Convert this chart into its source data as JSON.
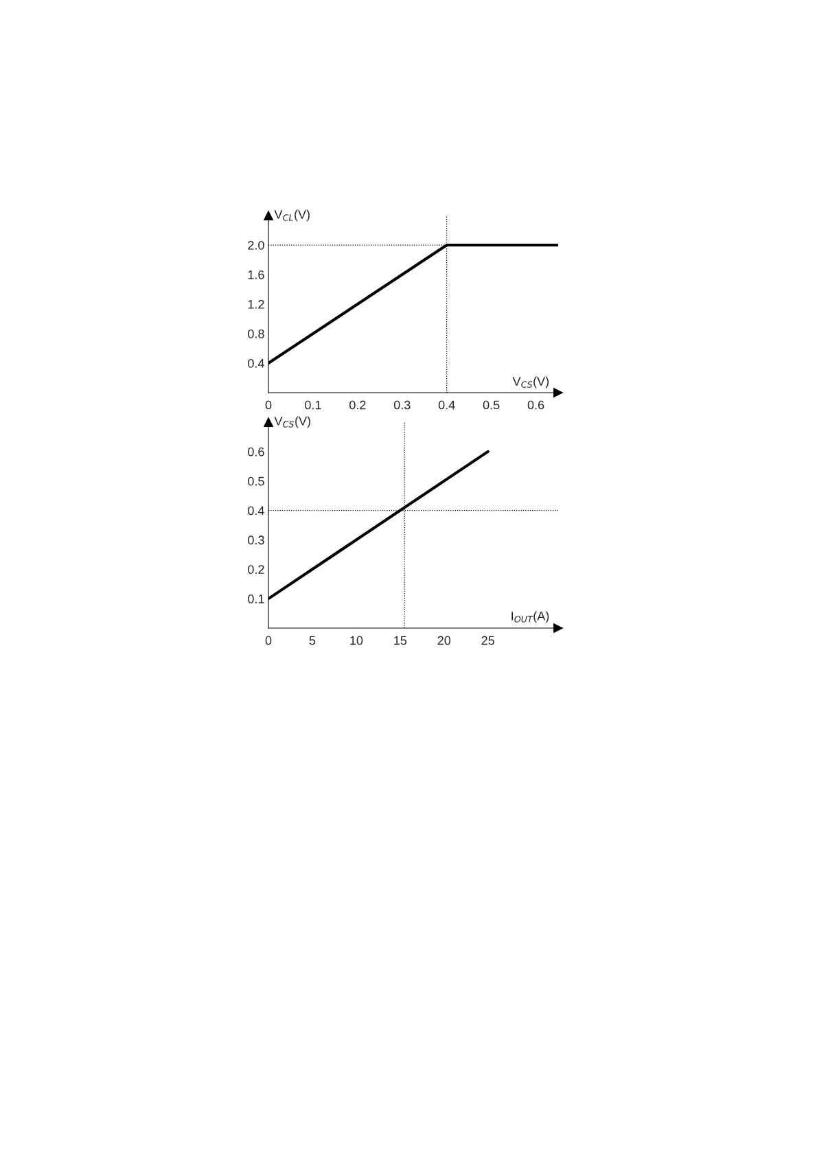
{
  "chart_data": [
    {
      "type": "line",
      "xlabel": "V$_{CS}$(V)",
      "ylabel": "V$_{CL}$(V)",
      "series": [
        {
          "color": "#000000",
          "x": [
            0,
            0.4,
            0.65
          ],
          "values": [
            0.4,
            2.0,
            2.0
          ]
        }
      ],
      "xlim": [
        0,
        0.65
      ],
      "ylim": [
        0,
        2.4
      ],
      "xticks": [
        0,
        0.1,
        0.2,
        0.3,
        0.4,
        0.5,
        0.6
      ],
      "yticks": [
        0.4,
        0.8,
        1.2,
        1.6,
        {
          "value": 2,
          "label": "2.0"
        }
      ],
      "ref_lines": [
        {
          "axis": "y",
          "value": 2.0,
          "line_style": "dotted",
          "color": "#000000"
        },
        {
          "axis": "x",
          "value": 0.4,
          "line_style": "dotted",
          "color": "#000000"
        }
      ]
    },
    {
      "type": "line",
      "xlabel": "I$_{OUT}$(A)",
      "ylabel": "V$_{CS}$(V)",
      "series": [
        {
          "color": "#000000",
          "x": [
            0,
            25
          ],
          "values": [
            0.1,
            0.6
          ]
        }
      ],
      "xlim": [
        0,
        33
      ],
      "ylim": [
        0,
        0.7
      ],
      "xticks": [
        0,
        5,
        10,
        15,
        20,
        25
      ],
      "yticks": [
        0.1,
        0.2,
        0.3,
        0.4,
        0.5,
        0.6
      ],
      "ref_lines": [
        {
          "axis": "y",
          "value": 0.4,
          "line_style": "dotted",
          "color": "#000000"
        },
        {
          "axis": "x",
          "value": 15.5,
          "line_style": "dotted",
          "color": "#000000"
        }
      ]
    }
  ]
}
